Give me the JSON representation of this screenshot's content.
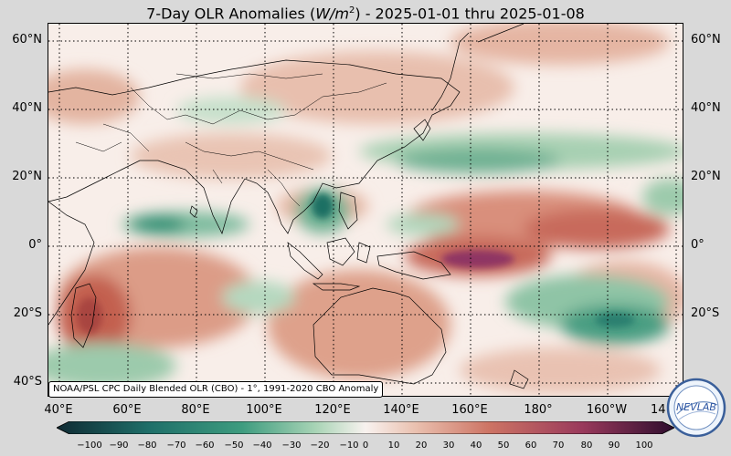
{
  "title_prefix": "7-Day OLR Anomalies (",
  "title_unit": "W/m",
  "title_exp": "2",
  "title_suffix": ") - 2025-01-01 thru 2025-01-08",
  "credit": "NOAA/PSL CPC Daily Blended OLR (CBO) - 1°, 1991-2020 CBO Anomaly",
  "lat_labels": [
    "60°N",
    "40°N",
    "20°N",
    "0°",
    "20°S",
    "40°S"
  ],
  "lon_labels": [
    "40°E",
    "60°E",
    "80°E",
    "100°E",
    "120°E",
    "140°E",
    "160°E",
    "180°",
    "160°W",
    "14"
  ],
  "colorbar_ticks": [
    "−100",
    "−90",
    "−80",
    "−70",
    "−60",
    "−50",
    "−40",
    "−30",
    "−20",
    "−10",
    "0",
    "10",
    "20",
    "30",
    "40",
    "50",
    "60",
    "70",
    "80",
    "90",
    "100"
  ],
  "logo_text": "NEVLAB",
  "colors": {
    "neg_strong": "#143a3f",
    "neg": "#2f8f73",
    "neg_light": "#a8d2b4",
    "neutral": "#f7f1ee",
    "pos_light": "#e6b7a4",
    "pos": "#c8675a",
    "pos_strong": "#7a1e57"
  }
}
